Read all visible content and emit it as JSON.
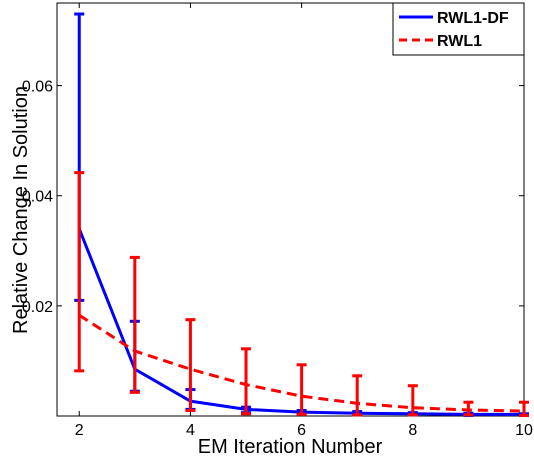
{
  "chart_data": {
    "type": "line",
    "title": "",
    "xlabel": "EM Iteration Number",
    "ylabel": "Relative Change In Solution",
    "xlim": [
      1.6,
      10
    ],
    "ylim": [
      0,
      0.075
    ],
    "x_ticks": [
      2,
      4,
      6,
      8,
      10
    ],
    "y_ticks": [
      0.02,
      0.04,
      0.06
    ],
    "x_tick_labels": [
      "2",
      "4",
      "6",
      "8",
      "10"
    ],
    "y_tick_labels": [
      "0.02",
      "0.04",
      "0.06"
    ],
    "grid": false,
    "legend_position": "top-right",
    "series": [
      {
        "name": "RWL1-DF",
        "color": "#0000ff",
        "line_style": "solid",
        "x": [
          2,
          3,
          4,
          5,
          6,
          7,
          8,
          9,
          10
        ],
        "y": [
          0.034,
          0.0085,
          0.0027,
          0.0012,
          0.0007,
          0.0005,
          0.0004,
          0.0003,
          0.0003
        ],
        "err_low": [
          0.021,
          0.0045,
          0.0012,
          0.0006,
          0.0004,
          0.0003,
          0.0002,
          0.0001,
          0.0001
        ],
        "err_high": [
          0.073,
          0.0172,
          0.0048,
          0.0016,
          0.001,
          0.0008,
          0.0006,
          0.0005,
          0.0004
        ]
      },
      {
        "name": "RWL1",
        "color": "#ff0000",
        "line_style": "dashed",
        "x": [
          2,
          3,
          4,
          5,
          6,
          7,
          8,
          9,
          10
        ],
        "y": [
          0.0183,
          0.0118,
          0.0085,
          0.0057,
          0.0036,
          0.0023,
          0.0015,
          0.0011,
          0.0009
        ],
        "err_low": [
          0.0082,
          0.0043,
          0.001,
          0.0004,
          0.0003,
          0.0002,
          0.0002,
          0.0002,
          0.0001
        ],
        "err_high": [
          0.0442,
          0.0288,
          0.0175,
          0.0122,
          0.0093,
          0.0073,
          0.0055,
          0.0025,
          0.0025
        ]
      }
    ]
  }
}
